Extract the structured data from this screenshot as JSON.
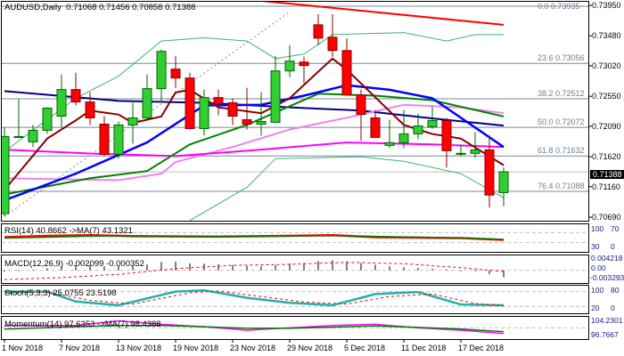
{
  "header": {
    "symbol_timeframe": "AUDUSD,Daily",
    "ohlc": "0.71068 0.71456 0.70858 0.71388"
  },
  "current_price": "0.71388",
  "colors": {
    "bull": "#32cd32",
    "bear": "#ff0000",
    "fib": "#778899"
  },
  "chart_data": {
    "type": "candlestick",
    "title": "AUDUSD,Daily",
    "ylim": [
      0.70636,
      0.74018
    ],
    "y_ticks": [
      "0.73950",
      "0.73480",
      "0.73020",
      "0.72550",
      "0.72090",
      "0.71620",
      "0.71160",
      "0.70690"
    ],
    "x_tick_labels": [
      {
        "index": 0,
        "label": "1 Nov 2018"
      },
      {
        "index": 4,
        "label": "7 Nov 2018"
      },
      {
        "index": 8,
        "label": "13 Nov 2018"
      },
      {
        "index": 12,
        "label": "19 Nov 2018"
      },
      {
        "index": 16,
        "label": "23 Nov 2018"
      },
      {
        "index": 20,
        "label": "29 Nov 2018"
      },
      {
        "index": 24,
        "label": "5 Dec 2018"
      },
      {
        "index": 28,
        "label": "11 Dec 2018"
      },
      {
        "index": 32,
        "label": "17 Dec 2018"
      }
    ],
    "candles": [
      {
        "o": 0.70745,
        "h": 0.72068,
        "l": 0.70704,
        "c": 0.71931
      },
      {
        "o": 0.71931,
        "h": 0.72504,
        "l": 0.71904,
        "c": 0.71931
      },
      {
        "o": 0.71849,
        "h": 0.72109,
        "l": 0.71767,
        "c": 0.72027
      },
      {
        "o": 0.72027,
        "h": 0.72381,
        "l": 0.71972,
        "c": 0.72368
      },
      {
        "o": 0.72245,
        "h": 0.72886,
        "l": 0.72068,
        "c": 0.72654
      },
      {
        "o": 0.72654,
        "h": 0.72913,
        "l": 0.72409,
        "c": 0.72463
      },
      {
        "o": 0.72463,
        "h": 0.72613,
        "l": 0.72109,
        "c": 0.72218
      },
      {
        "o": 0.72122,
        "h": 0.72245,
        "l": 0.71631,
        "c": 0.71658
      },
      {
        "o": 0.71658,
        "h": 0.72163,
        "l": 0.7159,
        "c": 0.72109
      },
      {
        "o": 0.72109,
        "h": 0.7245,
        "l": 0.71822,
        "c": 0.72218
      },
      {
        "o": 0.72218,
        "h": 0.72886,
        "l": 0.72204,
        "c": 0.72668
      },
      {
        "o": 0.72668,
        "h": 0.73268,
        "l": 0.7245,
        "c": 0.73241
      },
      {
        "o": 0.72968,
        "h": 0.73172,
        "l": 0.72681,
        "c": 0.72831
      },
      {
        "o": 0.72831,
        "h": 0.72913,
        "l": 0.7204,
        "c": 0.72054
      },
      {
        "o": 0.72054,
        "h": 0.72654,
        "l": 0.71945,
        "c": 0.72531
      },
      {
        "o": 0.72531,
        "h": 0.72654,
        "l": 0.72259,
        "c": 0.72436
      },
      {
        "o": 0.7245,
        "h": 0.72518,
        "l": 0.72109,
        "c": 0.72245
      },
      {
        "o": 0.7219,
        "h": 0.72681,
        "l": 0.7204,
        "c": 0.72122
      },
      {
        "o": 0.72122,
        "h": 0.72613,
        "l": 0.71945,
        "c": 0.72163
      },
      {
        "o": 0.7215,
        "h": 0.73172,
        "l": 0.7215,
        "c": 0.72941
      },
      {
        "o": 0.72941,
        "h": 0.73336,
        "l": 0.72845,
        "c": 0.73091
      },
      {
        "o": 0.73077,
        "h": 0.73159,
        "l": 0.7275,
        "c": 0.73023
      },
      {
        "o": 0.7365,
        "h": 0.73814,
        "l": 0.73336,
        "c": 0.73445
      },
      {
        "o": 0.73459,
        "h": 0.73814,
        "l": 0.73159,
        "c": 0.73254
      },
      {
        "o": 0.73254,
        "h": 0.73445,
        "l": 0.72559,
        "c": 0.72572
      },
      {
        "o": 0.72572,
        "h": 0.72654,
        "l": 0.71863,
        "c": 0.72272
      },
      {
        "o": 0.72218,
        "h": 0.7234,
        "l": 0.71918,
        "c": 0.71918
      },
      {
        "o": 0.71795,
        "h": 0.7219,
        "l": 0.71754,
        "c": 0.71836
      },
      {
        "o": 0.71836,
        "h": 0.7234,
        "l": 0.71754,
        "c": 0.71972
      },
      {
        "o": 0.71972,
        "h": 0.72286,
        "l": 0.7189,
        "c": 0.72095
      },
      {
        "o": 0.72081,
        "h": 0.72395,
        "l": 0.72054,
        "c": 0.72177
      },
      {
        "o": 0.72177,
        "h": 0.72218,
        "l": 0.71454,
        "c": 0.71713
      },
      {
        "o": 0.71672,
        "h": 0.71808,
        "l": 0.71631,
        "c": 0.71672
      },
      {
        "o": 0.71672,
        "h": 0.71999,
        "l": 0.71604,
        "c": 0.71726
      },
      {
        "o": 0.71726,
        "h": 0.71945,
        "l": 0.7084,
        "c": 0.71031
      },
      {
        "o": 0.71068,
        "h": 0.71456,
        "l": 0.70858,
        "c": 0.71388
      }
    ],
    "fib_levels": [
      {
        "label": "0.0 0.73935",
        "value": 0.73935
      },
      {
        "label": "23.6 0.73056",
        "value": 0.73056
      },
      {
        "label": "38.2 0.72512",
        "value": 0.72512
      },
      {
        "label": "50.0 0.72072",
        "value": 0.72072
      },
      {
        "label": "61.8 0.71632",
        "value": 0.71632
      },
      {
        "label": "76.4 0.71088",
        "value": 0.71088
      }
    ],
    "trendline": {
      "from": {
        "index": 0,
        "value": 0.707
      },
      "to": {
        "index": 20,
        "value": 0.7385
      }
    },
    "overlays": [
      {
        "name": "ma-red",
        "color": "#ff0000",
        "width": 2,
        "points": [
          [
            18,
            0.7402
          ],
          [
            35,
            0.7365
          ]
        ]
      },
      {
        "name": "ma-navy",
        "color": "#000080",
        "width": 2,
        "points": [
          [
            0,
            0.7263
          ],
          [
            8,
            0.7248
          ],
          [
            14,
            0.7245
          ],
          [
            20,
            0.7238
          ],
          [
            25,
            0.7233
          ],
          [
            30,
            0.7221
          ],
          [
            35,
            0.721
          ]
        ]
      },
      {
        "name": "ma-violet",
        "color": "#ee82ee",
        "width": 2,
        "points": [
          [
            0,
            0.7129
          ],
          [
            8,
            0.7126
          ],
          [
            11,
            0.7136
          ],
          [
            12,
            0.7154
          ],
          [
            16,
            0.7177
          ],
          [
            20,
            0.7204
          ],
          [
            24,
            0.7222
          ],
          [
            28,
            0.7242
          ],
          [
            32,
            0.7238
          ],
          [
            35,
            0.7229
          ]
        ]
      },
      {
        "name": "ma-magenta",
        "color": "#ff00ff",
        "width": 2,
        "points": [
          [
            0,
            0.7173
          ],
          [
            6,
            0.7167
          ],
          [
            12,
            0.7163
          ],
          [
            18,
            0.7173
          ],
          [
            24,
            0.7184
          ],
          [
            30,
            0.7181
          ],
          [
            35,
            0.7177
          ]
        ]
      },
      {
        "name": "ma-green",
        "color": "#008000",
        "width": 2,
        "points": [
          [
            0,
            0.7104
          ],
          [
            6,
            0.7129
          ],
          [
            10,
            0.714
          ],
          [
            13,
            0.7181
          ],
          [
            17,
            0.7211
          ],
          [
            22,
            0.7259
          ],
          [
            26,
            0.7256
          ],
          [
            30,
            0.7249
          ],
          [
            35,
            0.7224
          ]
        ]
      },
      {
        "name": "ma-blue",
        "color": "#0000ff",
        "width": 2.5,
        "points": [
          [
            0,
            0.7095
          ],
          [
            5,
            0.7136
          ],
          [
            10,
            0.7184
          ],
          [
            14,
            0.7241
          ],
          [
            18,
            0.7242
          ],
          [
            21,
            0.7256
          ],
          [
            24,
            0.7272
          ],
          [
            27,
            0.7265
          ],
          [
            30,
            0.7252
          ],
          [
            35,
            0.7177
          ]
        ]
      },
      {
        "name": "ma-darkred",
        "color": "#8b0000",
        "width": 2,
        "points": [
          [
            0,
            0.7111
          ],
          [
            3,
            0.719
          ],
          [
            5,
            0.7218
          ],
          [
            6,
            0.7233
          ],
          [
            8,
            0.7227
          ],
          [
            9,
            0.7214
          ],
          [
            11,
            0.7224
          ],
          [
            12,
            0.7261
          ],
          [
            13,
            0.7265
          ],
          [
            15,
            0.7238
          ],
          [
            18,
            0.7229
          ],
          [
            20,
            0.7252
          ],
          [
            22,
            0.7293
          ],
          [
            23,
            0.7313
          ],
          [
            24,
            0.7296
          ],
          [
            28,
            0.7211
          ],
          [
            30,
            0.7197
          ],
          [
            32,
            0.719
          ],
          [
            35,
            0.7149
          ]
        ]
      },
      {
        "name": "bollinger-upper",
        "color": "#3cb371",
        "width": 1,
        "points": [
          [
            0,
            0.717
          ],
          [
            5,
            0.7252
          ],
          [
            8,
            0.7286
          ],
          [
            11,
            0.734
          ],
          [
            14,
            0.7345
          ],
          [
            17,
            0.734
          ],
          [
            19,
            0.7313
          ],
          [
            21,
            0.732
          ],
          [
            23,
            0.735
          ],
          [
            28,
            0.7353
          ],
          [
            31,
            0.734
          ],
          [
            33,
            0.735
          ],
          [
            35,
            0.735
          ]
        ]
      },
      {
        "name": "bollinger-lower",
        "color": "#3cb371",
        "width": 1,
        "points": [
          [
            13,
            0.7064
          ],
          [
            17,
            0.7115
          ],
          [
            19,
            0.7159
          ],
          [
            25,
            0.7162
          ],
          [
            28,
            0.7155
          ],
          [
            32,
            0.7136
          ],
          [
            35,
            0.7099
          ]
        ]
      }
    ],
    "indicators": {
      "rsi": {
        "label": "RSI(14) 40.8662  ->MA(7) 43.1321",
        "ylim": [
          0,
          100
        ],
        "levels": [
          70,
          30
        ],
        "ticks": [
          "100",
          "70",
          "30",
          "0"
        ],
        "rsi": [
          [
            0,
            52
          ],
          [
            3,
            57
          ],
          [
            6,
            60
          ],
          [
            9,
            56
          ],
          [
            12,
            55
          ],
          [
            15,
            54
          ],
          [
            18,
            56
          ],
          [
            21,
            58
          ],
          [
            23,
            60
          ],
          [
            26,
            52
          ],
          [
            29,
            50
          ],
          [
            32,
            48
          ],
          [
            35,
            41
          ]
        ],
        "ma": [
          [
            0,
            48
          ],
          [
            3,
            52
          ],
          [
            6,
            56
          ],
          [
            9,
            57
          ],
          [
            12,
            56
          ],
          [
            15,
            55
          ],
          [
            18,
            56
          ],
          [
            21,
            57
          ],
          [
            23,
            58
          ],
          [
            26,
            55
          ],
          [
            29,
            52
          ],
          [
            32,
            49
          ],
          [
            35,
            43
          ]
        ]
      },
      "macd": {
        "label": "MACD(12,26,9) -0.002099 -0.000352",
        "ylim": [
          -0.003293,
          0.004218
        ],
        "ticks": [
          "0.004218",
          "0.00",
          "-0.003293"
        ],
        "hist": [
          -0.0004,
          -0.0002,
          0.0002,
          0.0006,
          0.0012,
          0.0016,
          0.0016,
          0.0012,
          0.0013,
          0.0014,
          0.0018,
          0.0025,
          0.0026,
          0.0021,
          0.002,
          0.0018,
          0.0016,
          0.0013,
          0.0012,
          0.0016,
          0.002,
          0.0022,
          0.0028,
          0.003,
          0.0027,
          0.0022,
          0.0017,
          0.0012,
          0.0009,
          0.0007,
          0.0005,
          0.0002,
          0.0,
          -0.0003,
          -0.0012,
          -0.0021
        ],
        "signal": [
          [
            0,
            -0.0028
          ],
          [
            4,
            -0.0022
          ],
          [
            8,
            -0.0012
          ],
          [
            12,
            0.0005
          ],
          [
            16,
            0.0015
          ],
          [
            20,
            0.0018
          ],
          [
            24,
            0.0024
          ],
          [
            28,
            0.002
          ],
          [
            32,
            0.0008
          ],
          [
            35,
            -0.00035
          ]
        ]
      },
      "stoch": {
        "label": "Stoch(5,3,3) 25.0755 23.5198",
        "ylim": [
          0,
          100
        ],
        "levels": [
          80,
          20
        ],
        "ticks": [
          "100",
          "80",
          "20",
          "0"
        ],
        "k": [
          [
            0,
            80
          ],
          [
            3,
            80
          ],
          [
            5,
            40
          ],
          [
            8,
            25
          ],
          [
            12,
            80
          ],
          [
            14,
            85
          ],
          [
            17,
            55
          ],
          [
            20,
            35
          ],
          [
            23,
            25
          ],
          [
            26,
            70
          ],
          [
            29,
            78
          ],
          [
            32,
            28
          ],
          [
            35,
            25
          ]
        ],
        "d": [
          [
            0,
            72
          ],
          [
            3,
            78
          ],
          [
            6,
            45
          ],
          [
            9,
            30
          ],
          [
            13,
            75
          ],
          [
            15,
            82
          ],
          [
            18,
            60
          ],
          [
            21,
            38
          ],
          [
            24,
            30
          ],
          [
            27,
            60
          ],
          [
            30,
            70
          ],
          [
            33,
            32
          ],
          [
            35,
            23
          ]
        ]
      },
      "momentum": {
        "label": "Momentum(14) 97.6353  ->MA(7) 98.4388",
        "ylim": [
          96.0,
          104.3
        ],
        "ticks": [
          "104.2301",
          "96.7667"
        ],
        "mom": [
          [
            0,
            101
          ],
          [
            5,
            101
          ],
          [
            8,
            103
          ],
          [
            11,
            101.5
          ],
          [
            14,
            100.5
          ],
          [
            17,
            99
          ],
          [
            20,
            100
          ],
          [
            23,
            101
          ],
          [
            26,
            101.5
          ],
          [
            29,
            100
          ],
          [
            32,
            99
          ],
          [
            35,
            97.6
          ]
        ],
        "ma": [
          [
            0,
            99.5
          ],
          [
            5,
            100.5
          ],
          [
            8,
            101
          ],
          [
            11,
            101
          ],
          [
            14,
            100.5
          ],
          [
            17,
            99.8
          ],
          [
            20,
            99.8
          ],
          [
            23,
            100.3
          ],
          [
            26,
            100.8
          ],
          [
            29,
            100.2
          ],
          [
            32,
            99.5
          ],
          [
            35,
            98.4
          ]
        ]
      }
    }
  }
}
